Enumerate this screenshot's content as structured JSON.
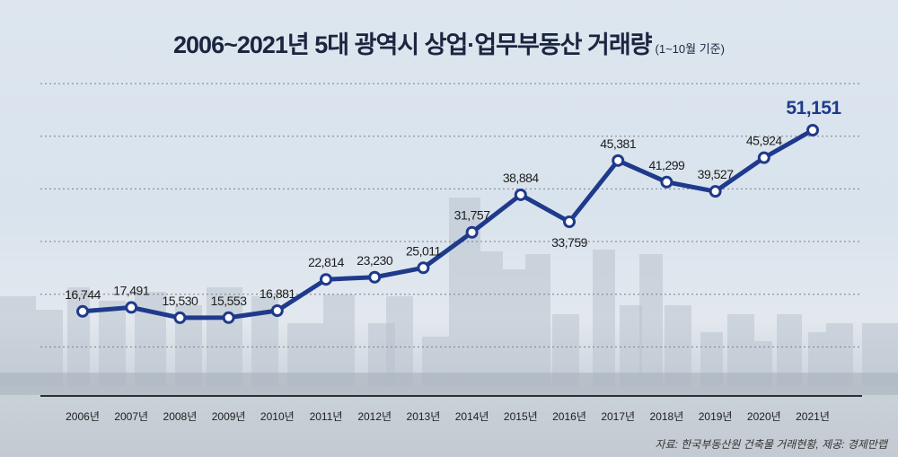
{
  "chart_data": {
    "type": "line",
    "title": "2006~2021년 5대 광역시 상업·업무부동산 거래량",
    "subtitle": "(1~10월 기준)",
    "categories": [
      "2006년",
      "2007년",
      "2008년",
      "2009년",
      "2010년",
      "2011년",
      "2012년",
      "2013년",
      "2014년",
      "2015년",
      "2016년",
      "2017년",
      "2018년",
      "2019년",
      "2020년",
      "2021년"
    ],
    "values": [
      16744,
      17491,
      15530,
      15553,
      16881,
      22814,
      23230,
      25011,
      31757,
      38884,
      33759,
      45381,
      41299,
      39527,
      45924,
      51151
    ],
    "labels": [
      "16,744",
      "17,491",
      "15,530",
      "15,553",
      "16,881",
      "22,814",
      "23,230",
      "25,011",
      "31,757",
      "38,884",
      "33,759",
      "45,381",
      "41,299",
      "39,527",
      "45,924",
      "51,151"
    ],
    "ylim": [
      0,
      60000
    ],
    "grid": true,
    "colors": {
      "line": "#1f3a8c",
      "highlight": "#1f3a8c"
    }
  },
  "source": "자료: 한국부동산원 건축물 거래현황, 제공: 경제만랩"
}
